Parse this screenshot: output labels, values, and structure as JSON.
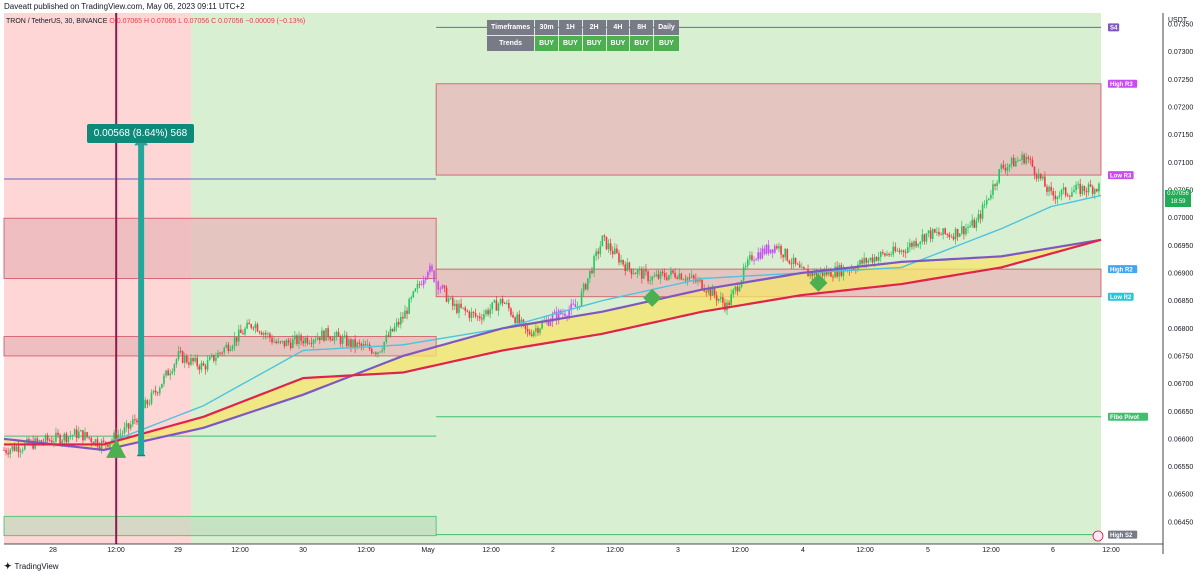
{
  "header": {
    "published": "Daveatt published on TradingView.com, May 06, 2023 09:11 UTC+2",
    "symbol": "TRON / TetherUS, 30, BINANCE",
    "ohlc": "O 0.07065 H 0.07065 L 0.07056 C 0.07056 −0.00009 (−0.13%)"
  },
  "footer": {
    "brand": "TradingView"
  },
  "colors": {
    "bull": "#26a69a",
    "bull_candle": "#22c55e",
    "bear_candle": "#f23645",
    "magenta_candle": "#c84bf5",
    "ema_fast": "#4fc3dd",
    "ema_slow": "#7e57c2",
    "ema_red": "#e0234b",
    "fill_yellow": "#f5e56b",
    "resistance_zone": "#e8b3b8",
    "support_line": "#3fbf6f",
    "pivot_line": "#5c6bc0",
    "bg_red": "#ffd6d6",
    "bg_green": "#d9efd2"
  },
  "trend_table": {
    "headers": [
      "Timeframes",
      "30m",
      "1H",
      "2H",
      "4H",
      "8H",
      "Daily"
    ],
    "row_label": "Trends",
    "values": [
      "BUY",
      "BUY",
      "BUY",
      "BUY",
      "BUY",
      "BUY"
    ]
  },
  "measure": {
    "text": "0.00568 (8.64%) 568"
  },
  "price_axis": {
    "currency": "USDT",
    "ticks": [
      "0.07350",
      "0.07300",
      "0.07250",
      "0.07200",
      "0.07150",
      "0.07100",
      "0.07050",
      "0.07000",
      "0.06950",
      "0.06900",
      "0.06850",
      "0.06800",
      "0.06750",
      "0.06700",
      "0.06650",
      "0.06600",
      "0.06550",
      "0.06500",
      "0.06450"
    ],
    "current_price": "0.07056",
    "countdown": "18:59"
  },
  "time_axis": {
    "ticks": [
      "28",
      "12:00",
      "29",
      "12:00",
      "30",
      "12:00",
      "May",
      "12:00",
      "2",
      "12:00",
      "3",
      "12:00",
      "4",
      "12:00",
      "5",
      "12:00",
      "6",
      "12:00"
    ]
  },
  "level_labels": [
    {
      "text": "S4",
      "color": "#7e57c2",
      "price": 0.07344
    },
    {
      "text": "High R3",
      "color": "#c84bf5",
      "price": 0.07242
    },
    {
      "text": "Low R3",
      "color": "#c84bf5",
      "price": 0.07077
    },
    {
      "text": "High R2",
      "color": "#42a5f5",
      "price": 0.06907
    },
    {
      "text": "Low R2",
      "color": "#26c6da",
      "price": 0.06857
    },
    {
      "text": "Fibo Pivot",
      "color": "#3fbf6f",
      "price": 0.0664
    },
    {
      "text": "High S2",
      "color": "#787b86",
      "price": 0.06427
    }
  ],
  "chart_data": {
    "type": "line",
    "title": "",
    "ylim": [
      0.0641,
      0.0737
    ],
    "x_range_hours": [
      0,
      264
    ],
    "series": [
      {
        "name": "",
        "role": "close",
        "x": [
          0,
          6,
          12,
          18,
          24,
          30,
          36,
          42,
          48,
          54,
          60,
          66,
          72,
          78,
          84,
          90,
          96,
          102,
          108,
          114,
          120,
          126,
          132,
          138,
          144,
          150,
          156,
          162,
          168,
          174,
          180,
          186,
          192,
          198,
          204,
          210,
          216,
          222,
          228,
          234,
          240,
          246,
          252,
          258,
          264
        ],
        "values": [
          0.0658,
          0.0659,
          0.066,
          0.0661,
          0.0659,
          0.0662,
          0.0668,
          0.0675,
          0.0673,
          0.0677,
          0.0681,
          0.0677,
          0.0678,
          0.0679,
          0.0677,
          0.0676,
          0.0682,
          0.0691,
          0.0684,
          0.0682,
          0.0685,
          0.0679,
          0.0682,
          0.0684,
          0.0696,
          0.0691,
          0.0689,
          0.069,
          0.0688,
          0.0684,
          0.0693,
          0.0695,
          0.069,
          0.069,
          0.0691,
          0.0693,
          0.0694,
          0.0697,
          0.0697,
          0.0699,
          0.0709,
          0.0711,
          0.0704,
          0.0705,
          0.07056
        ]
      },
      {
        "name": "",
        "role": "ema_fast",
        "x": [
          0,
          24,
          48,
          72,
          96,
          120,
          144,
          168,
          192,
          216,
          240,
          252,
          264
        ],
        "values": [
          0.0659,
          0.0659,
          0.0666,
          0.0676,
          0.0677,
          0.068,
          0.0685,
          0.0689,
          0.069,
          0.0691,
          0.0698,
          0.0702,
          0.0704
        ]
      },
      {
        "name": "",
        "role": "ema_slow",
        "x": [
          0,
          24,
          48,
          72,
          96,
          120,
          144,
          168,
          192,
          216,
          240,
          264
        ],
        "values": [
          0.066,
          0.0658,
          0.0662,
          0.0668,
          0.0675,
          0.068,
          0.0683,
          0.0687,
          0.069,
          0.0692,
          0.0693,
          0.0696
        ]
      },
      {
        "name": "",
        "role": "ema_red",
        "x": [
          0,
          24,
          48,
          72,
          96,
          120,
          144,
          168,
          192,
          216,
          240,
          264
        ],
        "values": [
          0.0659,
          0.0659,
          0.0664,
          0.0671,
          0.0672,
          0.0676,
          0.0679,
          0.0683,
          0.0686,
          0.0688,
          0.0691,
          0.0696
        ]
      }
    ],
    "zones": [
      {
        "from_x": 0,
        "to_x": 104,
        "top": 0.06999,
        "bottom": 0.0689,
        "kind": "resistance"
      },
      {
        "from_x": 0,
        "to_x": 104,
        "top": 0.06785,
        "bottom": 0.0675,
        "kind": "resistance"
      },
      {
        "from_x": 104,
        "to_x": 264,
        "top": 0.07242,
        "bottom": 0.07077,
        "kind": "resistance"
      },
      {
        "from_x": 104,
        "to_x": 264,
        "top": 0.06907,
        "bottom": 0.06857,
        "kind": "resistance"
      },
      {
        "from_x": 0,
        "to_x": 104,
        "top": 0.0646,
        "bottom": 0.06425,
        "kind": "support"
      }
    ],
    "lines": [
      {
        "from_x": 0,
        "to_x": 104,
        "price": 0.0707,
        "kind": "pivot"
      },
      {
        "from_x": 0,
        "to_x": 104,
        "price": 0.06605,
        "kind": "support"
      },
      {
        "from_x": 104,
        "to_x": 264,
        "price": 0.07344,
        "kind": "pivot"
      },
      {
        "from_x": 104,
        "to_x": 264,
        "price": 0.0664,
        "kind": "support"
      },
      {
        "from_x": 104,
        "to_x": 264,
        "price": 0.06427,
        "kind": "support"
      }
    ],
    "background": [
      {
        "from_x": 0,
        "to_x": 45,
        "color": "red"
      },
      {
        "from_x": 45,
        "to_x": 264,
        "color": "green"
      }
    ],
    "signals": [
      {
        "x": 27,
        "price": 0.06582,
        "shape": "triangle-up"
      },
      {
        "x": 156,
        "price": 0.06855,
        "shape": "diamond"
      },
      {
        "x": 196,
        "price": 0.06882,
        "shape": "diamond"
      }
    ],
    "vertical_marker": {
      "x": 27
    },
    "measure": {
      "x": 33,
      "from": 0.0657,
      "to": 0.07138
    }
  }
}
